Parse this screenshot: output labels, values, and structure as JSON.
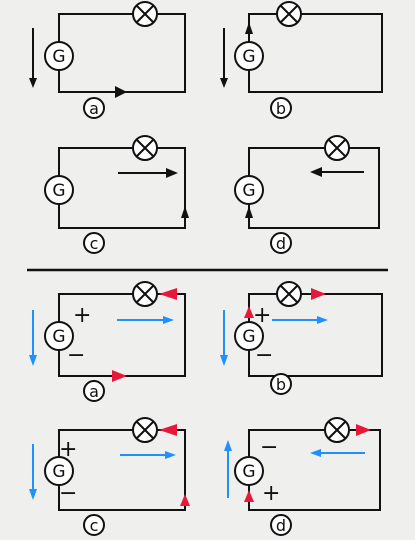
{
  "component_labels": {
    "generator": "G"
  },
  "colors": {
    "wire": "#111111",
    "electron_flow": "#1e90ff",
    "conventional_current": "#e8183a",
    "background": "#efefee"
  },
  "top_section": {
    "panels": [
      {
        "label": "a"
      },
      {
        "label": "b"
      },
      {
        "label": "c"
      },
      {
        "label": "d"
      }
    ]
  },
  "bottom_section": {
    "panels": [
      {
        "label": "a",
        "pos_sign": "+",
        "neg_sign": "−"
      },
      {
        "label": "b",
        "pos_sign": "+",
        "neg_sign": "−"
      },
      {
        "label": "c",
        "pos_sign": "+",
        "neg_sign": "−"
      },
      {
        "label": "d",
        "pos_sign": "+",
        "neg_sign": "−"
      }
    ]
  }
}
